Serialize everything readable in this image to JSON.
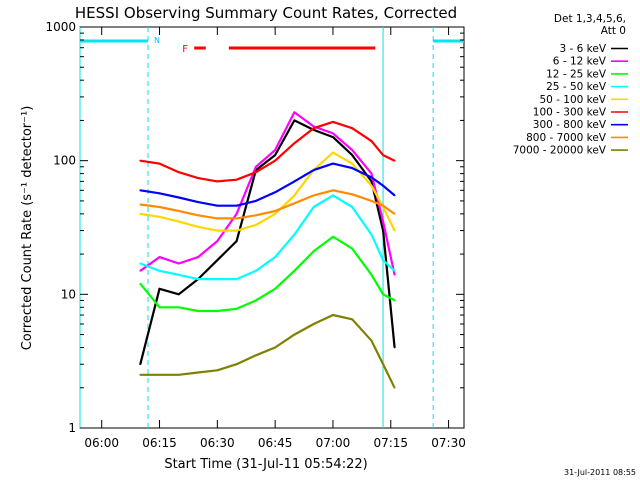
{
  "chart_data": {
    "type": "line",
    "title": "HESSI Observing Summary Count Rates, Corrected",
    "xlabel": "Start Time (31-Jul-11 05:54:22)",
    "ylabel": "Corrected Count Rate (s⁻¹ detector⁻¹)",
    "xlim": [
      "05:54:22",
      "07:34:00"
    ],
    "ylim": [
      1,
      1000
    ],
    "yscale": "log",
    "x_ticks": [
      "06:00",
      "06:15",
      "06:30",
      "06:45",
      "07:00",
      "07:15",
      "07:30"
    ],
    "y_ticks": [
      "1",
      "10",
      "100",
      "1000"
    ],
    "legend_header": [
      "Det 1,3,4,5,6,",
      "Att 0"
    ],
    "timestamp": "31-Jul-2011 08:55",
    "annotations": {
      "night_marker": "N",
      "flare_marker": "F",
      "night_intervals": [
        [
          "05:54:22",
          "06:12"
        ],
        [
          "07:26",
          "07:34"
        ]
      ],
      "flare_intervals": [
        [
          "06:24",
          "06:27"
        ],
        [
          "06:33",
          "07:11"
        ]
      ],
      "vertical_lines_solid": [
        "05:54:22",
        "07:13"
      ],
      "vertical_lines_dashed": [
        "06:12",
        "07:26"
      ]
    },
    "x": [
      "06:10",
      "06:15",
      "06:20",
      "06:25",
      "06:30",
      "06:35",
      "06:40",
      "06:45",
      "06:50",
      "06:55",
      "07:00",
      "07:05",
      "07:10",
      "07:13",
      "07:16"
    ],
    "series": [
      {
        "name": "3 - 6 keV",
        "color": "#000000",
        "values": [
          3,
          11,
          10,
          13,
          18,
          25,
          85,
          110,
          200,
          170,
          150,
          110,
          70,
          30,
          4
        ]
      },
      {
        "name": "6 - 12 keV",
        "color": "#ff00ff",
        "values": [
          15,
          19,
          17,
          19,
          25,
          40,
          90,
          120,
          230,
          180,
          160,
          120,
          80,
          35,
          14
        ]
      },
      {
        "name": "12 - 25 keV",
        "color": "#00ff00",
        "values": [
          12,
          8,
          8,
          7.5,
          7.5,
          7.8,
          9,
          11,
          15,
          21,
          27,
          22,
          14,
          10,
          9
        ]
      },
      {
        "name": "25 - 50 keV",
        "color": "#00ffff",
        "values": [
          17,
          15,
          14,
          13,
          13,
          13,
          15,
          19,
          28,
          45,
          55,
          45,
          28,
          18,
          15
        ]
      },
      {
        "name": "50 - 100 keV",
        "color": "#ffd700",
        "values": [
          40,
          38,
          35,
          32,
          30,
          30,
          33,
          40,
          55,
          85,
          115,
          95,
          65,
          45,
          30
        ]
      },
      {
        "name": "100 - 300 keV",
        "color": "#ff0000",
        "values": [
          100,
          95,
          82,
          74,
          70,
          72,
          82,
          100,
          135,
          175,
          195,
          175,
          140,
          110,
          100
        ]
      },
      {
        "name": "300 - 800 keV",
        "color": "#0000ff",
        "values": [
          60,
          57,
          53,
          49,
          46,
          46,
          50,
          58,
          70,
          85,
          95,
          88,
          75,
          65,
          55
        ]
      },
      {
        "name": "800 - 7000 keV",
        "color": "#ff8c00",
        "values": [
          47,
          45,
          42,
          39,
          37,
          37,
          39,
          42,
          48,
          55,
          60,
          56,
          50,
          46,
          40
        ]
      },
      {
        "name": "7000 - 20000 keV",
        "color": "#808000",
        "values": [
          2.5,
          2.5,
          2.5,
          2.6,
          2.7,
          3,
          3.5,
          4,
          5,
          6,
          7,
          6.5,
          4.5,
          3,
          2
        ]
      }
    ]
  }
}
